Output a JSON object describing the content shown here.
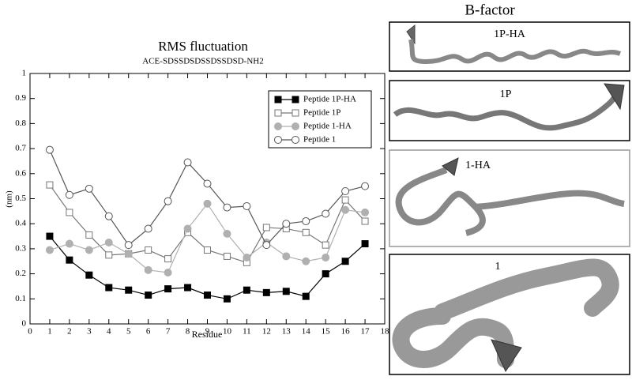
{
  "chart_data": {
    "type": "line",
    "title": "RMS fluctuation",
    "subtitle": "ACE-SDSSDSDSSDSSDSD-NH2",
    "x_label": "Residue",
    "y_label": "(nm)",
    "x": [
      1,
      2,
      3,
      4,
      5,
      6,
      7,
      8,
      9,
      10,
      11,
      12,
      13,
      14,
      15,
      16,
      17
    ],
    "xlim": [
      0,
      18
    ],
    "xticks": [
      0,
      1,
      2,
      3,
      4,
      5,
      6,
      7,
      8,
      9,
      10,
      11,
      12,
      13,
      14,
      15,
      16,
      17,
      18
    ],
    "ylim": [
      0,
      1
    ],
    "yticks": [
      0,
      0.1,
      0.2,
      0.3,
      0.4,
      0.5,
      0.6,
      0.7,
      0.8,
      0.9,
      1
    ],
    "legend": "upper right",
    "series": [
      {
        "name": "Peptide 1P-HA",
        "color": "#000000",
        "marker": "square",
        "filled": true,
        "values": [
          0.35,
          0.255,
          0.195,
          0.145,
          0.135,
          0.115,
          0.14,
          0.145,
          0.115,
          0.1,
          0.135,
          0.125,
          0.13,
          0.11,
          0.2,
          0.25,
          0.32
        ]
      },
      {
        "name": "Peptide 1P",
        "color": "#777777",
        "marker": "square",
        "filled": false,
        "values": [
          0.555,
          0.445,
          0.355,
          0.275,
          0.28,
          0.295,
          0.26,
          0.365,
          0.295,
          0.27,
          0.245,
          0.385,
          0.38,
          0.365,
          0.315,
          0.495,
          0.41
        ]
      },
      {
        "name": "Peptide 1-HA",
        "color": "#b0b0b0",
        "marker": "circle",
        "filled": true,
        "values": [
          0.295,
          0.32,
          0.295,
          0.325,
          0.28,
          0.215,
          0.205,
          0.38,
          0.48,
          0.36,
          0.265,
          0.325,
          0.27,
          0.25,
          0.265,
          0.455,
          0.445
        ]
      },
      {
        "name": "Peptide 1",
        "color": "#555555",
        "marker": "circle",
        "filled": false,
        "values": [
          0.695,
          0.515,
          0.54,
          0.43,
          0.315,
          0.38,
          0.49,
          0.645,
          0.56,
          0.465,
          0.47,
          0.315,
          0.4,
          0.41,
          0.44,
          0.53,
          0.55
        ]
      }
    ]
  },
  "b_factor": {
    "title": "B-factor",
    "panels": [
      "1P-HA",
      "1P",
      "1-HA",
      "1"
    ]
  }
}
